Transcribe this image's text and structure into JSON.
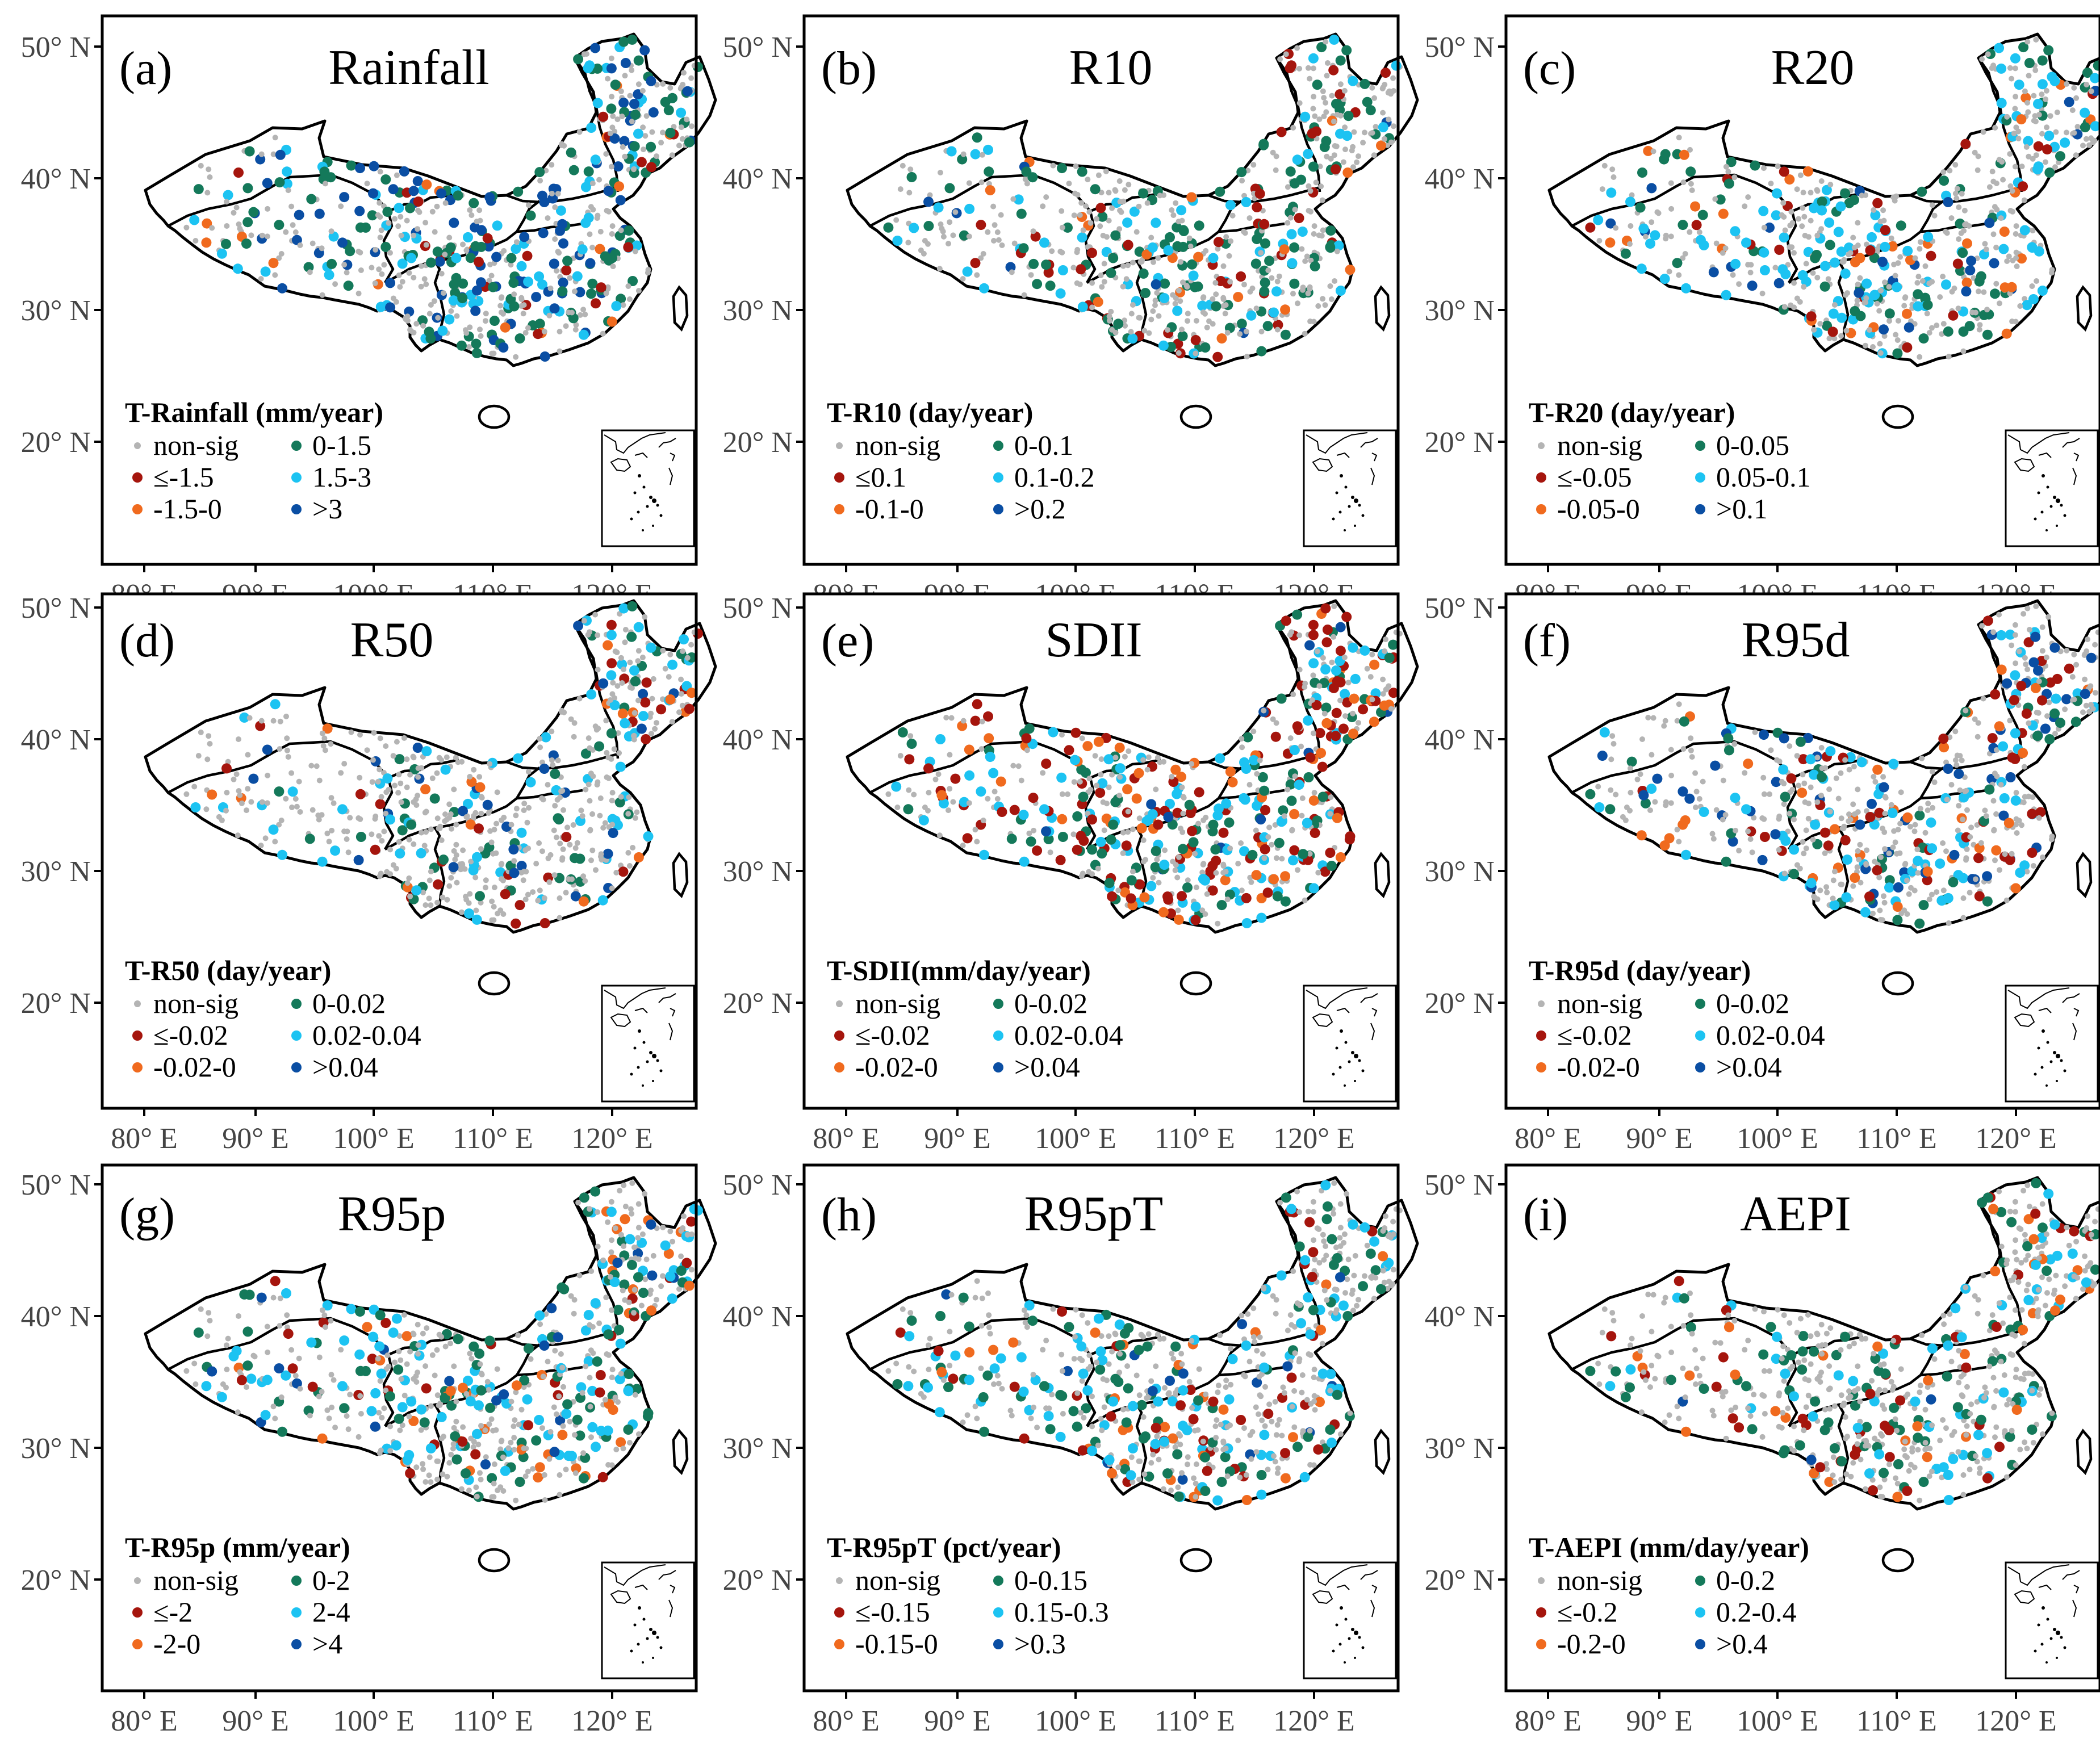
{
  "figure": {
    "colors": {
      "nonsig": "#b4b4b4",
      "neg_strong": "#a5150d",
      "neg": "#f06a1e",
      "pos": "#14795a",
      "pos_mid": "#1cc3f2",
      "pos_strong": "#0a4ea3"
    }
  },
  "axes": {
    "y_ticks": [
      "50° N",
      "40° N",
      "30° N",
      "20° N"
    ],
    "x_ticks": [
      "80° E",
      "90° E",
      "100° E",
      "110° E",
      "120° E"
    ]
  },
  "panels": [
    {
      "letter": "(a)",
      "name": "Rainfall",
      "legend_title": "T-Rainfall (mm/year)",
      "legend": [
        "non-sig",
        "≤-1.5",
        "-1.5-0",
        "0-1.5",
        "1.5-3",
        ">3"
      ],
      "mix": [
        0.5,
        0.04,
        0.02,
        0.18,
        0.08,
        0.18
      ]
    },
    {
      "letter": "(b)",
      "name": "R10",
      "legend_title": "T-R10 (day/year)",
      "legend": [
        "non-sig",
        "≤0.1",
        "-0.1-0",
        "0-0.1",
        "0.1-0.2",
        ">0.2"
      ],
      "mix": [
        0.62,
        0.05,
        0.05,
        0.18,
        0.09,
        0.01
      ]
    },
    {
      "letter": "(c)",
      "name": "R20",
      "legend_title": "T-R20 (day/year)",
      "legend": [
        "non-sig",
        "≤-0.05",
        "-0.05-0",
        "0-0.05",
        "0.05-0.1",
        ">0.1"
      ],
      "mix": [
        0.6,
        0.04,
        0.05,
        0.14,
        0.14,
        0.03
      ]
    },
    {
      "letter": "(d)",
      "name": "R50",
      "legend_title": "T-R50 (day/year)",
      "legend": [
        "non-sig",
        "≤-0.02",
        "-0.02-0",
        "0-0.02",
        "0.02-0.04",
        ">0.04"
      ],
      "mix": [
        0.7,
        0.04,
        0.04,
        0.08,
        0.09,
        0.05
      ]
    },
    {
      "letter": "(e)",
      "name": "SDII",
      "legend_title": "T-SDII(mm/day/year)",
      "legend": [
        "non-sig",
        "≤-0.02",
        "-0.02-0",
        "0-0.02",
        "0.02-0.04",
        ">0.04"
      ],
      "mix": [
        0.46,
        0.16,
        0.09,
        0.12,
        0.15,
        0.02
      ]
    },
    {
      "letter": "(f)",
      "name": "R95d",
      "legend_title": "T-R95d (day/year)",
      "legend": [
        "non-sig",
        "≤-0.02",
        "-0.02-0",
        "0-0.02",
        "0.02-0.04",
        ">0.04"
      ],
      "mix": [
        0.63,
        0.05,
        0.05,
        0.07,
        0.12,
        0.08
      ]
    },
    {
      "letter": "(g)",
      "name": "R95p",
      "legend_title": "T-R95p (mm/year)",
      "legend": [
        "non-sig",
        "≤-2",
        "-2-0",
        "0-2",
        "2-4",
        ">4"
      ],
      "mix": [
        0.6,
        0.05,
        0.05,
        0.13,
        0.13,
        0.04
      ]
    },
    {
      "letter": "(h)",
      "name": "R95pT",
      "legend_title": "T-R95pT (pct/year)",
      "legend": [
        "non-sig",
        "≤-0.15",
        "-0.15-0",
        "0-0.15",
        "0.15-0.3",
        ">0.3"
      ],
      "mix": [
        0.62,
        0.07,
        0.05,
        0.12,
        0.12,
        0.02
      ]
    },
    {
      "letter": "(i)",
      "name": "AEPI",
      "legend_title": "T-AEPI (mm/day/year)",
      "legend": [
        "non-sig",
        "≤-0.2",
        "-0.2-0",
        "0-0.2",
        "0.2-0.4",
        ">0.4"
      ],
      "mix": [
        0.68,
        0.07,
        0.05,
        0.11,
        0.08,
        0.01
      ]
    }
  ]
}
